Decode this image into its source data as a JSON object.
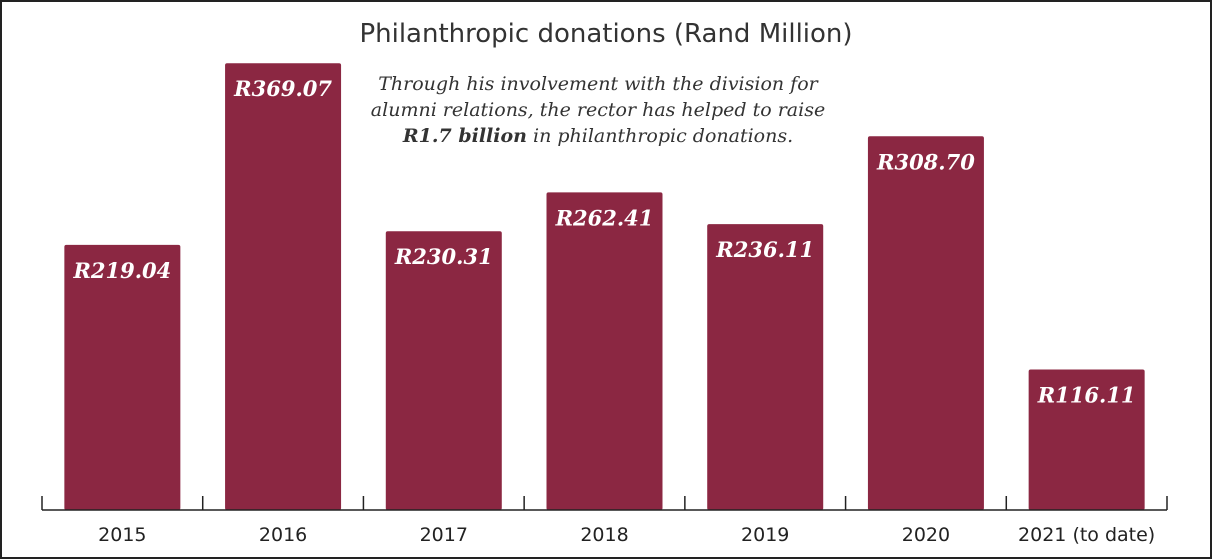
{
  "chart_data": {
    "type": "bar",
    "title": "Philanthropic donations (Rand Million)",
    "xlabel": "",
    "ylabel": "",
    "categories": [
      "2015",
      "2016",
      "2017",
      "2018",
      "2019",
      "2020",
      "2021 (to date)"
    ],
    "values": [
      219.04,
      369.07,
      230.31,
      262.41,
      236.11,
      308.7,
      116.11
    ],
    "value_labels": [
      "R219.04",
      "R369.07",
      "R230.31",
      "R262.41",
      "R236.11",
      "R308.70",
      "R116.11"
    ],
    "ylim": [
      0,
      380
    ],
    "grid": false,
    "legend": "none",
    "bar_color": "#8B2742",
    "annotation": {
      "line1": "Through his involvement with the division for",
      "line2": "alumni relations, the rector has helped to raise",
      "line3_strong": "R1.7 billion",
      "line3_rest": " in philanthropic donations."
    }
  }
}
